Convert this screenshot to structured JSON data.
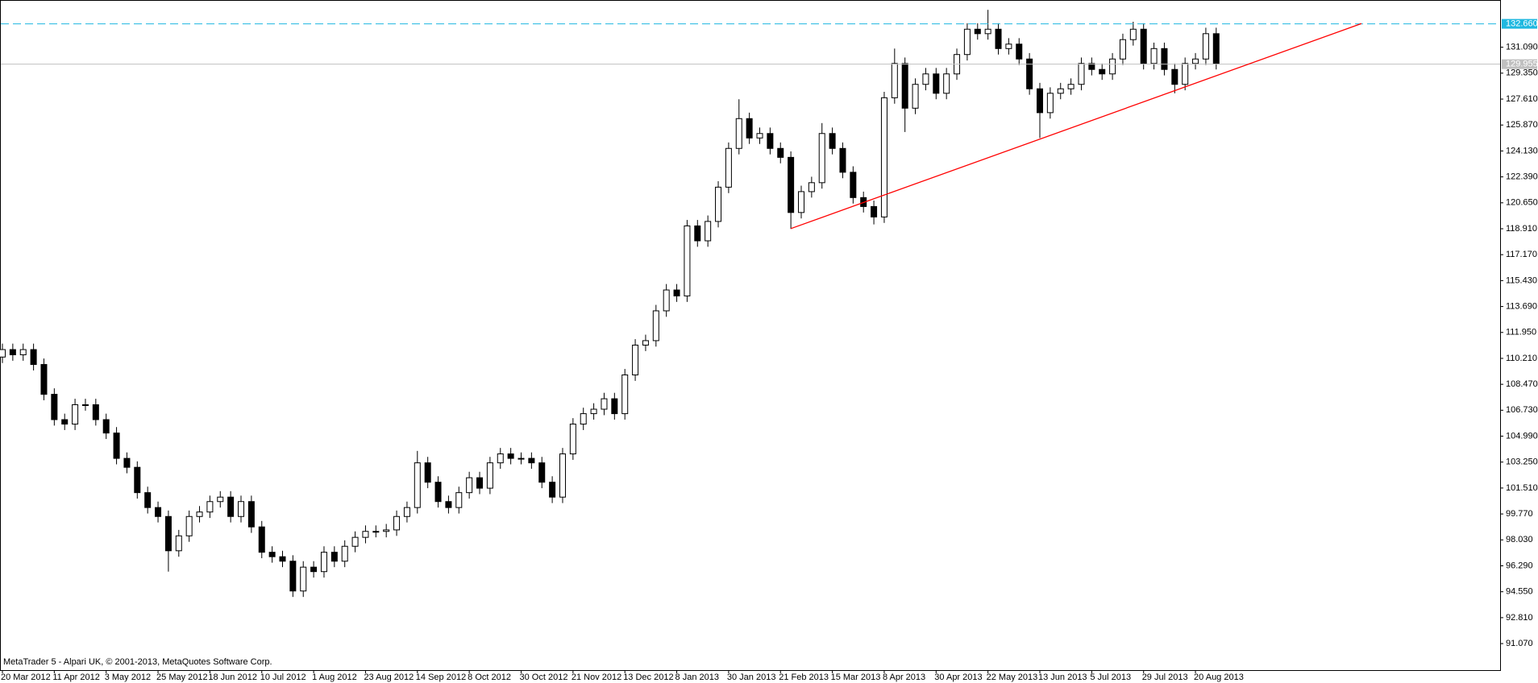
{
  "chart_data": {
    "type": "candlestick",
    "categories": [
      "20 Mar 2012",
      null,
      null,
      null,
      null,
      "11 Apr 2012",
      null,
      null,
      null,
      null,
      "3 May 2012",
      null,
      null,
      null,
      null,
      "25 May 2012",
      null,
      null,
      null,
      null,
      "18 Jun 2012",
      null,
      null,
      null,
      null,
      "10 Jul 2012",
      null,
      null,
      null,
      null,
      "1 Aug 2012",
      null,
      null,
      null,
      null,
      "23 Aug 2012",
      null,
      null,
      null,
      null,
      "14 Sep 2012",
      null,
      null,
      null,
      null,
      "8 Oct 2012",
      null,
      null,
      null,
      null,
      "30 Oct 2012",
      null,
      null,
      null,
      null,
      "21 Nov 2012",
      null,
      null,
      null,
      null,
      "13 Dec 2012",
      null,
      null,
      null,
      null,
      "8 Jan 2013",
      null,
      null,
      null,
      null,
      "30 Jan 2013",
      null,
      null,
      null,
      null,
      "21 Feb 2013",
      null,
      null,
      null,
      null,
      "15 Mar 2013",
      null,
      null,
      null,
      null,
      "8 Apr 2013",
      null,
      null,
      null,
      null,
      "30 Apr 2013",
      null,
      null,
      null,
      null,
      "22 May 2013",
      null,
      null,
      null,
      null,
      "13 Jun 2013",
      null,
      null,
      null,
      null,
      "5 Jul 2013",
      null,
      null,
      null,
      null,
      "29 Jul 2013",
      null,
      null,
      null,
      null,
      "20 Aug 2013",
      null,
      null
    ],
    "open": [
      110.3,
      110.8,
      110.45,
      110.8,
      109.8,
      107.8,
      106.1,
      105.8,
      107.1,
      107.1,
      106.1,
      105.2,
      103.5,
      102.9,
      101.2,
      100.2,
      99.6,
      97.3,
      98.3,
      99.6,
      99.9,
      100.6,
      100.9,
      99.6,
      100.6,
      98.9,
      97.2,
      96.9,
      96.6,
      94.6,
      96.2,
      95.9,
      97.2,
      96.6,
      97.6,
      98.2,
      98.6,
      98.6,
      98.7,
      99.6,
      100.2,
      103.2,
      101.9,
      100.6,
      100.2,
      101.2,
      102.2,
      101.5,
      103.2,
      103.8,
      103.5,
      103.5,
      103.2,
      101.9,
      100.9,
      103.8,
      105.8,
      106.5,
      106.8,
      107.5,
      106.5,
      109.1,
      111.1,
      111.4,
      113.4,
      114.8,
      114.4,
      119.1,
      118.1,
      119.4,
      121.7,
      124.3,
      126.3,
      125.0,
      125.3,
      124.3,
      123.7,
      120.0,
      121.4,
      122.0,
      125.3,
      124.3,
      122.7,
      121.0,
      120.4,
      119.7,
      127.7,
      130.0,
      127.0,
      128.6,
      129.3,
      128.0,
      129.3,
      130.6,
      132.3,
      132.0,
      132.3,
      131.0,
      131.3,
      130.3,
      128.3,
      126.7,
      128.0,
      128.3,
      128.6,
      130.0,
      129.6,
      129.3,
      130.3,
      131.6,
      132.3,
      130.0,
      131.0,
      129.6,
      128.6,
      130.0,
      130.3,
      132.0
    ],
    "high": [
      111.2,
      111.2,
      111.2,
      111.2,
      110.2,
      108.2,
      106.5,
      107.5,
      107.5,
      107.5,
      106.5,
      105.6,
      103.9,
      103.3,
      101.6,
      100.6,
      100.0,
      98.7,
      100.0,
      100.3,
      101.0,
      101.3,
      101.3,
      101.0,
      101.0,
      99.3,
      97.6,
      97.3,
      97.0,
      96.6,
      96.6,
      97.6,
      97.6,
      98.0,
      98.6,
      99.0,
      99.0,
      99.1,
      100.0,
      100.6,
      104.0,
      103.6,
      102.3,
      101.0,
      101.6,
      102.6,
      102.6,
      103.6,
      104.2,
      104.2,
      103.9,
      103.9,
      103.6,
      102.3,
      104.2,
      106.2,
      106.9,
      107.2,
      107.9,
      107.9,
      109.5,
      111.5,
      111.8,
      113.8,
      115.2,
      115.2,
      119.5,
      119.5,
      119.8,
      122.1,
      124.7,
      127.6,
      126.7,
      125.7,
      125.7,
      124.7,
      124.1,
      121.8,
      122.4,
      126.0,
      125.7,
      124.7,
      123.1,
      121.4,
      120.8,
      128.1,
      131.0,
      130.4,
      129.0,
      129.7,
      129.7,
      129.7,
      131.0,
      132.7,
      132.7,
      133.6,
      132.7,
      131.7,
      131.7,
      130.7,
      128.7,
      128.4,
      128.7,
      129.0,
      130.4,
      130.4,
      130.0,
      130.7,
      132.0,
      132.8,
      132.7,
      131.4,
      131.4,
      130.0,
      130.4,
      130.7,
      132.4,
      132.4
    ],
    "low": [
      109.9,
      110.05,
      110.05,
      109.4,
      107.4,
      105.7,
      105.4,
      105.4,
      106.7,
      105.7,
      104.8,
      103.1,
      102.5,
      100.8,
      99.8,
      99.2,
      95.9,
      96.9,
      97.9,
      99.2,
      99.5,
      100.2,
      99.2,
      99.2,
      98.5,
      96.8,
      96.5,
      96.2,
      94.2,
      94.2,
      95.5,
      95.5,
      96.2,
      96.2,
      97.2,
      97.8,
      98.2,
      98.2,
      98.3,
      99.2,
      99.8,
      101.5,
      100.2,
      99.8,
      99.8,
      100.8,
      101.1,
      101.1,
      102.8,
      103.1,
      103.1,
      102.8,
      101.5,
      100.5,
      100.5,
      103.4,
      105.4,
      106.1,
      106.4,
      106.1,
      106.1,
      108.7,
      110.7,
      111.0,
      113.0,
      114.0,
      114.0,
      117.7,
      117.7,
      119.0,
      121.3,
      123.9,
      124.6,
      124.6,
      123.9,
      123.3,
      118.9,
      119.6,
      121.0,
      121.6,
      123.9,
      122.3,
      120.6,
      120.0,
      119.2,
      119.3,
      127.3,
      125.4,
      126.6,
      128.2,
      127.6,
      127.6,
      128.9,
      130.2,
      131.6,
      131.6,
      130.6,
      130.6,
      129.9,
      127.9,
      125.0,
      126.3,
      127.6,
      127.9,
      128.2,
      129.2,
      128.9,
      128.9,
      129.9,
      131.2,
      129.6,
      129.6,
      129.2,
      128.0,
      128.2,
      129.6,
      129.9,
      129.6
    ],
    "close": [
      110.8,
      110.45,
      110.8,
      109.8,
      107.8,
      106.1,
      105.8,
      107.1,
      107.1,
      106.1,
      105.2,
      103.5,
      102.9,
      101.2,
      100.2,
      99.6,
      97.3,
      98.3,
      99.6,
      99.9,
      100.6,
      100.9,
      99.6,
      100.6,
      98.9,
      97.2,
      96.9,
      96.6,
      94.6,
      96.2,
      95.9,
      97.2,
      96.6,
      97.6,
      98.2,
      98.6,
      98.6,
      98.7,
      99.6,
      100.2,
      103.2,
      101.9,
      100.6,
      100.2,
      101.2,
      102.2,
      101.5,
      103.2,
      103.8,
      103.5,
      103.5,
      103.2,
      101.9,
      100.9,
      103.8,
      105.8,
      106.5,
      106.8,
      107.5,
      106.5,
      109.1,
      111.1,
      111.4,
      113.4,
      114.8,
      114.4,
      119.1,
      118.1,
      119.4,
      121.7,
      124.3,
      126.3,
      125.0,
      125.3,
      124.3,
      123.7,
      120.0,
      121.4,
      122.0,
      125.3,
      124.3,
      122.7,
      121.0,
      120.4,
      119.7,
      127.7,
      130.0,
      127.0,
      128.6,
      129.3,
      128.0,
      129.3,
      130.6,
      132.3,
      132.0,
      132.3,
      131.0,
      131.3,
      130.3,
      128.3,
      126.7,
      128.0,
      128.3,
      128.6,
      130.0,
      129.6,
      129.3,
      130.3,
      131.6,
      132.3,
      130.0,
      131.0,
      129.6,
      128.6,
      130.0,
      130.3,
      132.0,
      130.0
    ],
    "up_color": "#ffffff",
    "down_color": "#000000",
    "ylim": [
      89.29,
      134.26
    ],
    "yticks": [
      {
        "value": 131.09,
        "label": "131.090"
      },
      {
        "value": 129.35,
        "label": "129.350"
      },
      {
        "value": 127.61,
        "label": "127.610"
      },
      {
        "value": 125.87,
        "label": "125.870"
      },
      {
        "value": 124.13,
        "label": "124.130"
      },
      {
        "value": 122.39,
        "label": "122.390"
      },
      {
        "value": 120.65,
        "label": "120.650"
      },
      {
        "value": 118.91,
        "label": "118.910"
      },
      {
        "value": 117.17,
        "label": "117.170"
      },
      {
        "value": 115.43,
        "label": "115.430"
      },
      {
        "value": 113.69,
        "label": "113.690"
      },
      {
        "value": 111.95,
        "label": "111.950"
      },
      {
        "value": 110.21,
        "label": "110.210"
      },
      {
        "value": 108.47,
        "label": "108.470"
      },
      {
        "value": 106.73,
        "label": "106.730"
      },
      {
        "value": 104.99,
        "label": "104.990"
      },
      {
        "value": 103.25,
        "label": "103.250"
      },
      {
        "value": 101.51,
        "label": "101.510"
      },
      {
        "value": 99.77,
        "label": "99.770"
      },
      {
        "value": 98.03,
        "label": "98.030"
      },
      {
        "value": 96.29,
        "label": "96.290"
      },
      {
        "value": 94.55,
        "label": "94.550"
      },
      {
        "value": 92.81,
        "label": "92.810"
      },
      {
        "value": 91.07,
        "label": "91.070"
      }
    ],
    "hlines": [
      {
        "value": 132.66,
        "label": "132.660",
        "color": "#1fb8e0",
        "dashed": true
      },
      {
        "value": 129.955,
        "label": "129.955",
        "color": "#c0c0c0",
        "dashed": false
      }
    ],
    "trendline": {
      "x": [
        76,
        131
      ],
      "y": [
        118.92,
        132.68
      ],
      "color": "#ff0000"
    },
    "footer": "MetaTrader 5 - Alpari UK, © 2001-2013, MetaQuotes Software Corp."
  }
}
